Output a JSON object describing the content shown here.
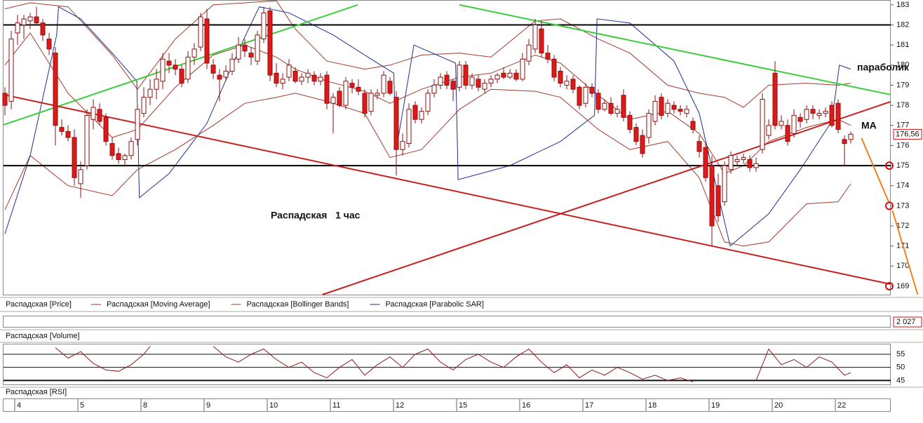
{
  "chart_data": [
    {
      "type": "candlestick",
      "name": "Распадская [Price]",
      "up_color": "#ffffff",
      "down_color": "#e01818",
      "edge_color": "#8b1010",
      "xlim": [
        -0.78,
        140.33
      ],
      "ylim": [
        168.58,
        183.24
      ],
      "yticks": [
        169,
        170,
        171,
        172,
        173,
        174,
        175,
        176,
        177,
        178,
        179,
        180,
        181,
        182,
        183
      ],
      "xticks": [
        {
          "value": 2,
          "label": "4"
        },
        {
          "value": 12,
          "label": "5"
        },
        {
          "value": 22,
          "label": "8"
        },
        {
          "value": 32,
          "label": "9"
        },
        {
          "value": 42,
          "label": "10"
        },
        {
          "value": 52,
          "label": "11"
        },
        {
          "value": 62,
          "label": "12"
        },
        {
          "value": 72,
          "label": "15"
        },
        {
          "value": 82,
          "label": "16"
        },
        {
          "value": 92,
          "label": "17"
        },
        {
          "value": 102,
          "label": "18"
        },
        {
          "value": 112,
          "label": "19"
        },
        {
          "value": 122,
          "label": "20"
        },
        {
          "value": 132,
          "label": "22"
        }
      ],
      "open": [
        178.6,
        178.2,
        181.6,
        182.0,
        182.2,
        182.4,
        182.1,
        181.3,
        180.6,
        176.9,
        176.7,
        176.4,
        174.1,
        175.0,
        177.3,
        177.8,
        177.4,
        176.1,
        175.6,
        175.3,
        175.5,
        176.3,
        177.6,
        178.4,
        178.8,
        179.2,
        180.2,
        180.0,
        179.8,
        179.3,
        180.4,
        180.9,
        182.3,
        180.0,
        179.5,
        179.4,
        179.7,
        180.3,
        181.0,
        180.6,
        180.2,
        181.3,
        182.7,
        179.6,
        179.1,
        179.4,
        179.7,
        179.2,
        179.4,
        179.5,
        179.2,
        179.5,
        178.1,
        178.7,
        178.0,
        179.1,
        178.9,
        178.6,
        177.7,
        178.5,
        178.6,
        179.2,
        178.4,
        175.8,
        176.1,
        178.0,
        177.3,
        177.7,
        178.6,
        179.0,
        179.5,
        179.2,
        178.9,
        180.0,
        179.0,
        179.3,
        178.8,
        179.1,
        179.3,
        179.6,
        179.4,
        179.6,
        179.3,
        180.2,
        180.8,
        181.8,
        180.6,
        180.3,
        179.7,
        179.0,
        179.3,
        178.9,
        178.1,
        178.9,
        178.6,
        177.8,
        178.1,
        177.6,
        178.5,
        177.5,
        176.9,
        176.5,
        176.4,
        177.2,
        178.4,
        177.6,
        178.0,
        177.8,
        177.6,
        177.2,
        176.2,
        175.9,
        175.0,
        174.0,
        173.2,
        174.8,
        175.2,
        175.3,
        175.3,
        174.9,
        175.8,
        176.5,
        179.6,
        177.0,
        177.0,
        176.6,
        177.4,
        177.3,
        177.8,
        177.5,
        177.6,
        178.0,
        178.1,
        176.3,
        176.3
      ],
      "high": [
        178.9,
        181.7,
        182.5,
        182.5,
        182.6,
        182.9,
        182.3,
        181.6,
        180.9,
        177.3,
        177.0,
        176.8,
        175.2,
        177.8,
        178.3,
        178.1,
        177.6,
        176.4,
        175.9,
        175.6,
        176.4,
        178.0,
        178.9,
        179.3,
        179.8,
        180.6,
        180.6,
        180.3,
        180.0,
        180.7,
        181.1,
        182.6,
        182.8,
        180.3,
        179.8,
        180.0,
        180.6,
        181.4,
        181.3,
        180.9,
        181.7,
        182.9,
        182.9,
        180.1,
        179.6,
        180.3,
        179.9,
        179.6,
        179.8,
        179.7,
        179.6,
        179.7,
        178.6,
        178.9,
        179.4,
        179.3,
        179.3,
        178.8,
        178.8,
        178.8,
        179.7,
        179.4,
        178.7,
        176.6,
        178.1,
        178.2,
        177.9,
        178.8,
        179.3,
        179.6,
        179.7,
        179.3,
        180.2,
        180.2,
        179.6,
        179.5,
        179.3,
        179.5,
        179.6,
        179.9,
        179.8,
        179.8,
        180.6,
        181.3,
        182.3,
        182.2,
        181.0,
        180.5,
        179.9,
        179.5,
        179.5,
        179.0,
        179.1,
        179.1,
        178.8,
        178.3,
        178.4,
        178.0,
        178.8,
        177.7,
        177.1,
        176.8,
        177.8,
        178.5,
        178.6,
        178.3,
        178.2,
        178.0,
        178.0,
        177.4,
        176.5,
        176.1,
        175.5,
        174.6,
        175.2,
        175.7,
        175.5,
        175.6,
        175.5,
        175.4,
        178.6,
        177.3,
        180.2,
        177.5,
        177.3,
        177.8,
        177.6,
        178.0,
        178.0,
        177.8,
        177.9,
        178.2,
        178.3,
        176.5,
        176.7
      ],
      "low": [
        177.5,
        177.8,
        181.0,
        181.3,
        181.8,
        182.0,
        181.2,
        180.5,
        176.0,
        176.5,
        176.2,
        174.0,
        173.4,
        174.8,
        176.8,
        177.0,
        176.0,
        175.3,
        175.1,
        175.0,
        175.3,
        176.0,
        177.4,
        178.0,
        178.3,
        178.8,
        179.6,
        179.5,
        178.9,
        179.1,
        180.0,
        180.7,
        179.8,
        179.3,
        178.2,
        179.2,
        179.5,
        180.1,
        180.4,
        180.0,
        180.0,
        181.1,
        179.2,
        178.9,
        178.8,
        179.2,
        179.1,
        179.0,
        179.1,
        179.0,
        179.0,
        177.8,
        176.6,
        177.9,
        177.8,
        178.6,
        178.5,
        177.4,
        177.5,
        178.3,
        178.4,
        178.5,
        174.5,
        175.5,
        175.9,
        177.1,
        177.1,
        177.5,
        178.4,
        178.8,
        178.8,
        178.2,
        178.7,
        178.8,
        178.8,
        178.7,
        178.6,
        178.9,
        179.1,
        179.3,
        179.3,
        179.2,
        179.2,
        180.0,
        180.6,
        180.4,
        180.1,
        179.2,
        178.9,
        178.8,
        178.6,
        177.8,
        177.9,
        178.4,
        177.6,
        177.7,
        177.5,
        177.4,
        177.2,
        176.6,
        176.0,
        175.4,
        176.1,
        177.0,
        177.3,
        177.4,
        177.6,
        177.5,
        177.4,
        176.6,
        175.4,
        174.2,
        171.0,
        172.2,
        173.0,
        174.6,
        175.0,
        175.1,
        174.7,
        174.7,
        175.6,
        176.3,
        176.8,
        176.8,
        176.0,
        176.4,
        176.9,
        177.1,
        177.3,
        177.3,
        177.4,
        176.9,
        176.6,
        175.0,
        176.1
      ],
      "close": [
        178.0,
        181.3,
        182.1,
        182.3,
        182.4,
        182.1,
        181.5,
        180.8,
        177.0,
        176.7,
        176.4,
        174.4,
        174.8,
        177.5,
        177.9,
        177.2,
        176.2,
        175.5,
        175.3,
        175.5,
        176.2,
        177.8,
        178.4,
        178.8,
        179.3,
        180.3,
        180.0,
        179.8,
        179.1,
        180.4,
        180.8,
        182.4,
        180.1,
        179.6,
        179.3,
        179.7,
        180.3,
        181.0,
        180.7,
        180.4,
        181.5,
        182.6,
        179.5,
        179.1,
        179.3,
        180.0,
        179.2,
        179.4,
        179.6,
        179.2,
        179.4,
        178.1,
        178.4,
        178.0,
        179.2,
        178.9,
        178.7,
        177.6,
        178.6,
        178.6,
        179.5,
        178.6,
        175.8,
        176.2,
        177.8,
        177.3,
        177.7,
        178.6,
        179.0,
        179.4,
        179.0,
        178.8,
        180.0,
        179.0,
        179.4,
        178.9,
        179.1,
        179.3,
        179.5,
        179.4,
        179.6,
        179.3,
        180.3,
        181.0,
        182.0,
        180.6,
        180.3,
        179.4,
        179.1,
        179.2,
        178.8,
        178.0,
        178.9,
        178.6,
        177.8,
        178.1,
        177.6,
        177.8,
        177.4,
        176.8,
        176.2,
        175.6,
        177.6,
        178.2,
        177.5,
        178.1,
        177.8,
        177.7,
        177.8,
        176.8,
        175.7,
        174.4,
        172.0,
        172.5,
        175.0,
        175.5,
        175.3,
        175.4,
        174.9,
        175.1,
        178.3,
        177.0,
        177.0,
        177.2,
        176.2,
        177.5,
        177.2,
        177.8,
        177.6,
        177.6,
        177.7,
        177.0,
        176.8,
        176.1,
        176.56
      ],
      "last_price": {
        "value": 176.56,
        "label": "176,56"
      },
      "overlays": [
        {
          "name": "Распадская [Moving Average]",
          "color": "#a33a2e",
          "x": [
            0,
            4,
            10,
            17,
            21,
            27,
            33,
            38,
            43,
            46,
            51,
            57,
            61,
            66,
            72,
            77,
            84,
            88,
            94,
            99,
            105,
            110,
            114,
            117,
            121,
            127,
            132,
            134
          ],
          "values": [
            180.0,
            181.6,
            178.6,
            176.4,
            176.8,
            178.9,
            180.5,
            181.0,
            180.4,
            179.8,
            179.2,
            178.7,
            178.1,
            178.8,
            179.4,
            179.6,
            180.5,
            180.1,
            178.5,
            177.3,
            177.7,
            176.6,
            174.6,
            175.0,
            176.2,
            176.9,
            177.3,
            177.0
          ]
        },
        {
          "name": "Распадская [Bollinger Bands]",
          "color": "#a33a2e",
          "x": [
            0,
            4,
            10,
            17,
            21,
            27,
            33,
            38,
            43,
            46,
            51,
            57,
            61,
            66,
            72,
            77,
            84,
            88,
            94,
            99,
            105,
            110,
            114,
            117,
            121,
            127,
            132,
            134
          ],
          "upper": [
            182.8,
            183.1,
            182.9,
            180.5,
            178.8,
            181.3,
            183.0,
            183.1,
            183.2,
            181.8,
            180.2,
            179.8,
            180.0,
            180.5,
            180.6,
            180.4,
            182.2,
            182.3,
            181.3,
            180.6,
            179.0,
            178.6,
            178.4,
            177.9,
            179.0,
            179.1,
            179.0,
            179.1
          ],
          "lower": [
            172.8,
            175.5,
            174.0,
            173.5,
            174.8,
            175.8,
            177.0,
            178.1,
            178.4,
            178.6,
            178.2,
            177.6,
            175.4,
            175.8,
            177.8,
            178.8,
            178.7,
            178.4,
            176.8,
            175.8,
            176.2,
            174.4,
            171.2,
            171.0,
            171.2,
            173.1,
            173.2,
            174.1
          ]
        },
        {
          "name": "Распадская [Parabolic SAR]",
          "color": "#1f2f8f",
          "x": [
            0,
            4,
            8.2,
            8.5,
            12,
            17,
            20.9,
            21.3,
            26,
            32,
            38,
            40.3,
            45,
            52,
            58,
            61.6,
            62,
            64.8,
            71.4,
            71.8,
            80,
            88,
            93.4,
            93.8,
            99,
            106,
            110,
            114.9,
            121,
            126,
            131,
            132.2,
            134
          ],
          "values": [
            171.6,
            175.5,
            181.5,
            182.9,
            182.3,
            180.6,
            179.2,
            173.4,
            174.6,
            177.1,
            181.4,
            182.9,
            182.6,
            181.5,
            180.3,
            179.6,
            175.8,
            181.0,
            180.1,
            174.3,
            175.0,
            176.2,
            177.5,
            182.3,
            182.1,
            180.2,
            177.6,
            171.0,
            172.6,
            174.8,
            177.2,
            180.0,
            179.8
          ]
        }
      ],
      "levels": {
        "color": "#000000",
        "values": [
          182,
          175
        ]
      },
      "targets": {
        "color": "#d01010",
        "values": [
          175,
          173,
          169
        ]
      },
      "trendlines": [
        {
          "color": "#3ccc3c",
          "x1": -0.22,
          "y1": 177.03,
          "x2": 55.9,
          "y2": 183
        },
        {
          "color": "#3ccc3c",
          "x1": 72,
          "y1": 183,
          "x2": 140.3,
          "y2": 178.53
        },
        {
          "color": "#c81e1e",
          "x1": -0.22,
          "y1": 178.53,
          "x2": 140.3,
          "y2": 169.1
        },
        {
          "color": "#c81e1e",
          "x1": 50.3,
          "y1": 168.58,
          "x2": 140.3,
          "y2": 178.18
        },
        {
          "color": "#f08020",
          "x1": 135.7,
          "y1": 176.37,
          "x2": 140.1,
          "y2": 173.12
        },
        {
          "color": "#f08020",
          "x1": 140.6,
          "y1": 172.77,
          "x2": 144.6,
          "y2": 168.58
        }
      ],
      "annotations": [
        "Распадская   1 час",
        "параболик",
        "МА"
      ]
    },
    {
      "type": "volume",
      "title": "Распадская [Volume]",
      "last_value": {
        "value": 2027,
        "label": "2 027"
      }
    },
    {
      "type": "line",
      "title": "Распадская [RSI]",
      "color": "#8b1a1a",
      "xlim": [
        -0.78,
        140.33
      ],
      "ylim": [
        43.5,
        59
      ],
      "yticks": [
        45,
        50,
        55
      ],
      "x": [
        8,
        10,
        12,
        14,
        16,
        18,
        20,
        22,
        23,
        28,
        33,
        35,
        37,
        39,
        41,
        43,
        45,
        47,
        49,
        51,
        53,
        55,
        57,
        59,
        61,
        63,
        65,
        67,
        69,
        71,
        73,
        75,
        77,
        79,
        81,
        83,
        85,
        87,
        89,
        91,
        93,
        95,
        97,
        99,
        101,
        103,
        105,
        107,
        109,
        114,
        119,
        121,
        123,
        125,
        127,
        129,
        131,
        133,
        134
      ],
      "values": [
        57.5,
        53.5,
        56,
        51.5,
        49,
        48.5,
        51,
        55,
        58,
        null,
        58,
        54,
        52,
        55,
        57,
        53,
        50,
        52,
        48,
        46,
        50,
        53,
        47,
        51,
        54,
        50,
        55,
        57,
        52,
        49,
        53,
        55,
        52,
        50,
        54,
        57,
        52,
        48,
        51,
        46,
        49,
        47,
        50,
        48,
        45.5,
        47,
        45,
        46,
        44.5,
        null,
        45,
        57,
        51,
        53,
        50,
        54,
        52,
        47,
        48
      ]
    }
  ]
}
